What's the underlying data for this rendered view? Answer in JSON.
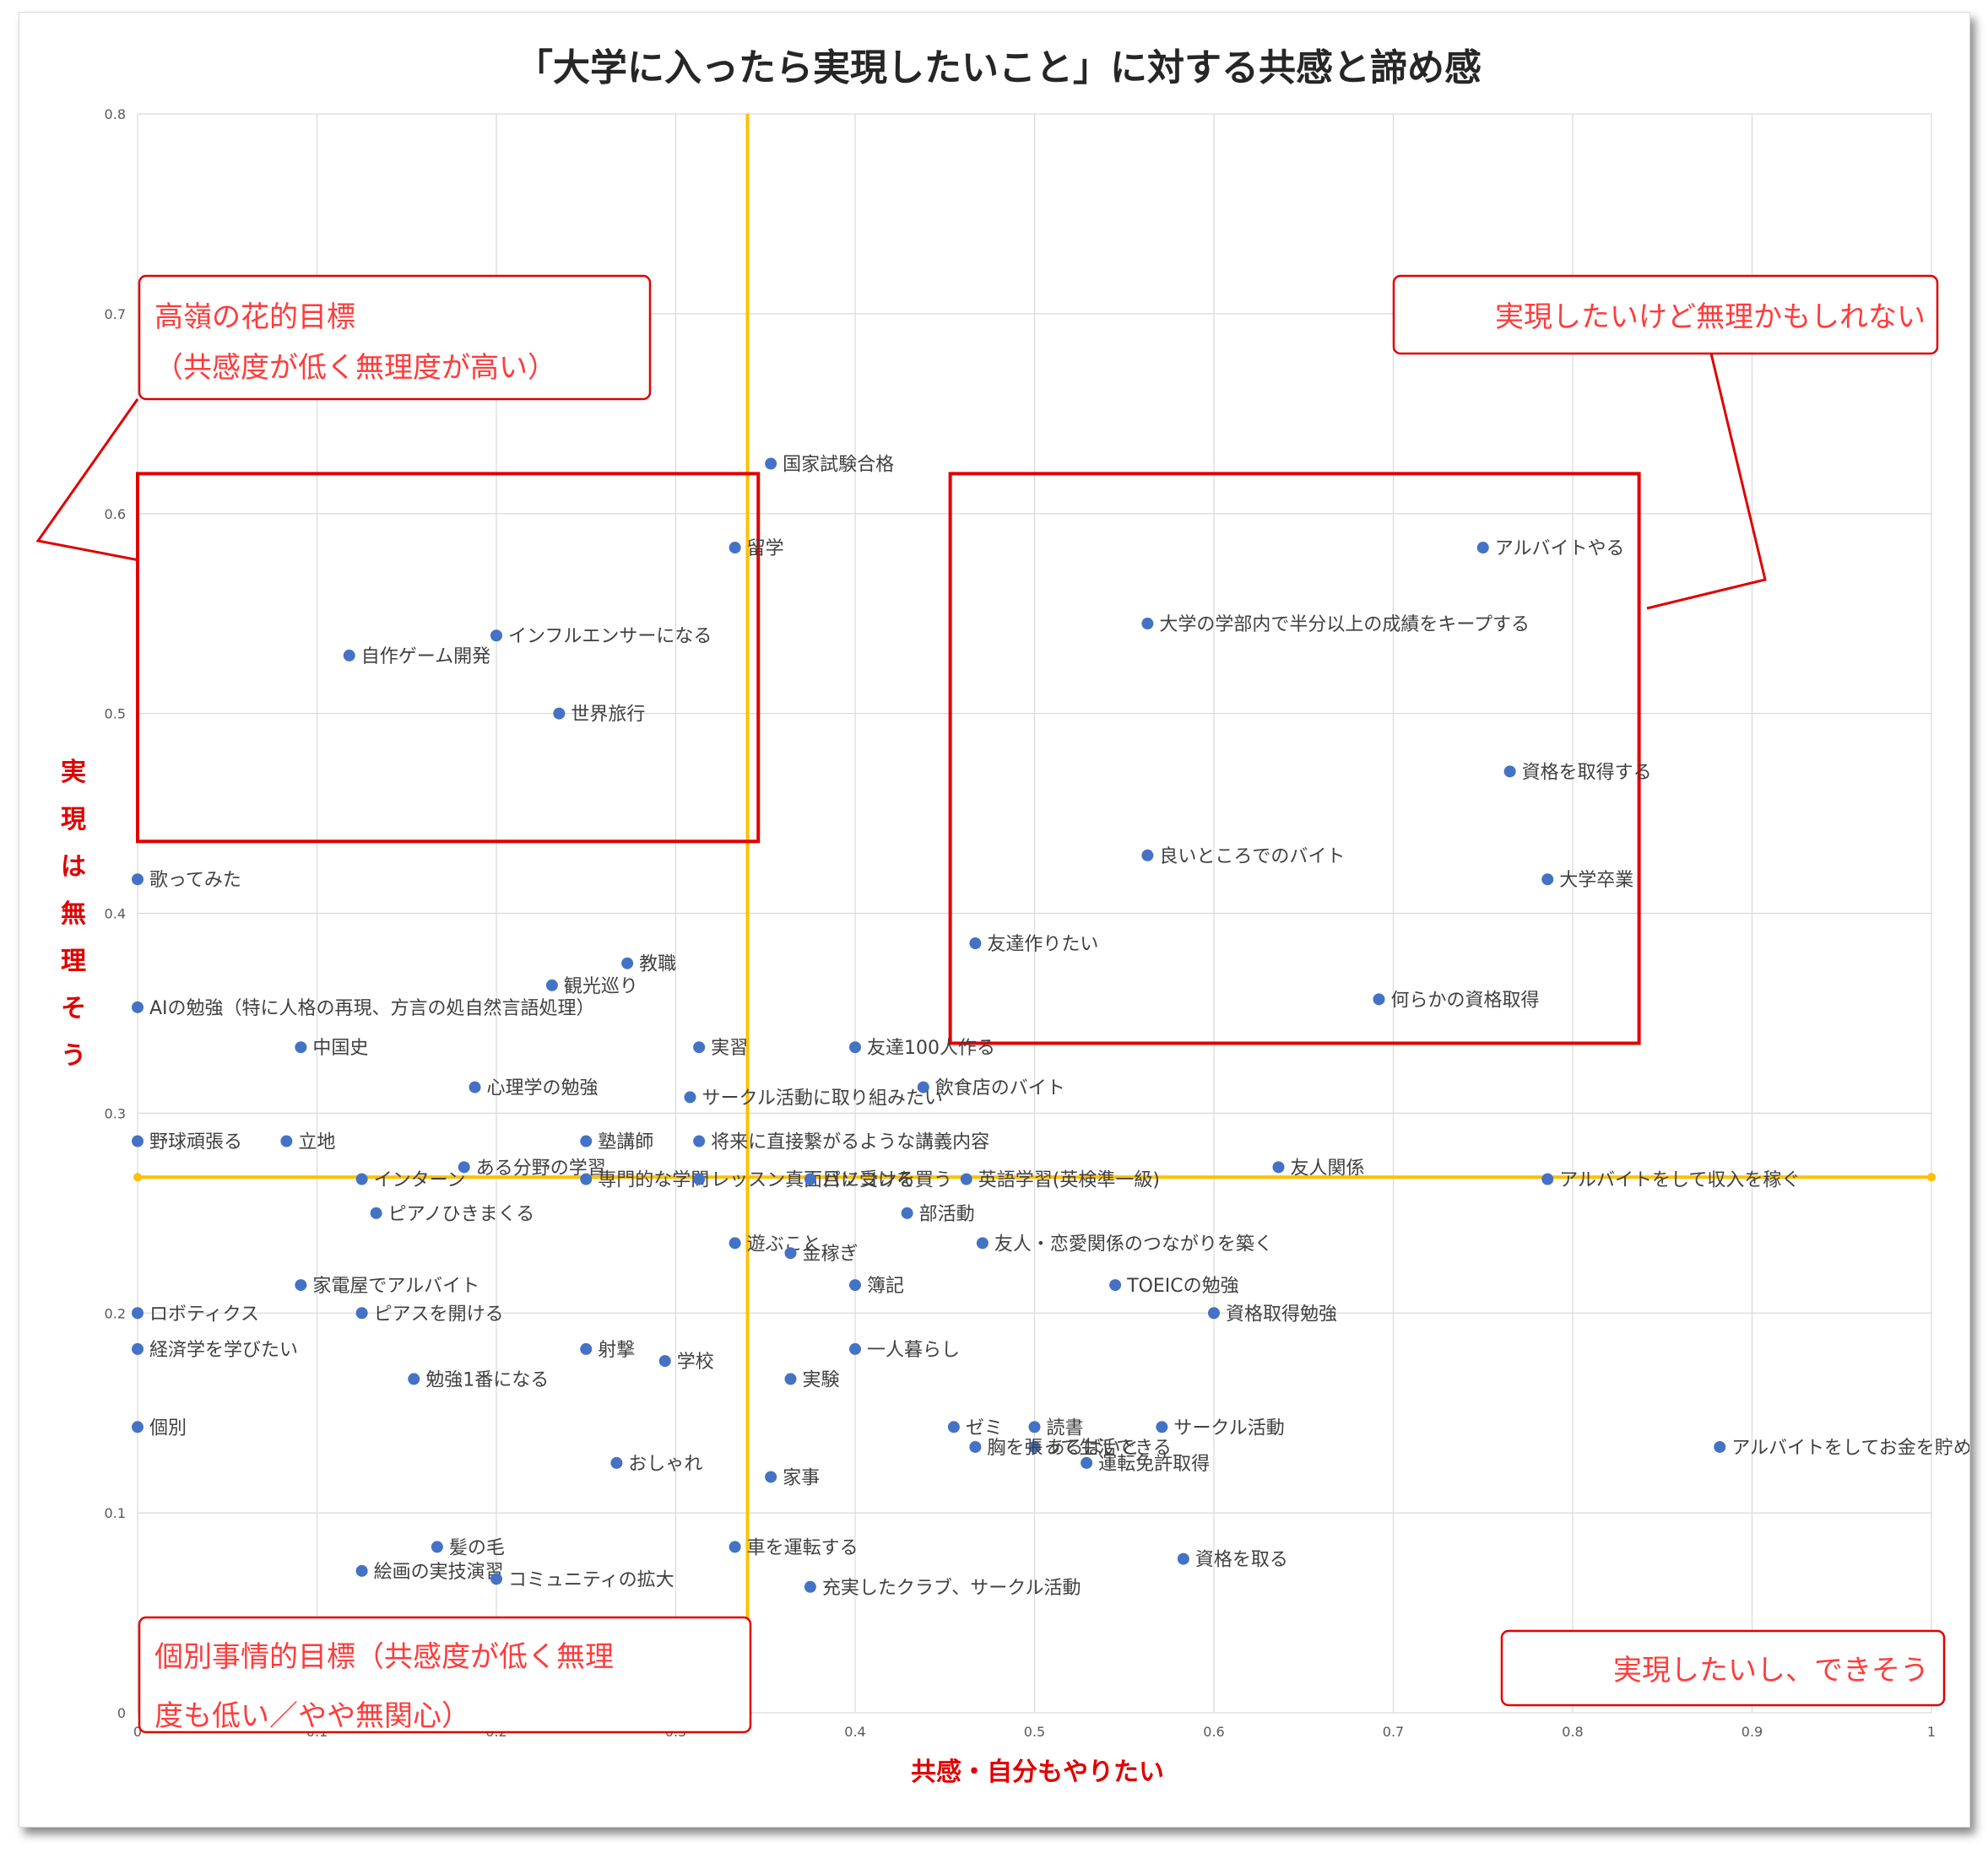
{
  "chart_data": {
    "type": "scatter",
    "title": "「大学に入ったら実現したいこと」に対する共感と諦め感",
    "xlabel": "共感・自分もやりたい",
    "ylabel": "実現は無理そう",
    "xlim": [
      0,
      1
    ],
    "ylim": [
      0,
      0.8
    ],
    "xticks": [
      "0",
      "0.1",
      "0.2",
      "0.3",
      "0.4",
      "0.5",
      "0.6",
      "0.7",
      "0.8",
      "0.9",
      "1"
    ],
    "yticks": [
      "0",
      "0.1",
      "0.2",
      "0.3",
      "0.4",
      "0.5",
      "0.6",
      "0.7",
      "0.8"
    ],
    "grid": true,
    "reference_lines": {
      "x": 0.34,
      "y": 0.268,
      "color": "#ffc000"
    },
    "marker_color": "#4472c4",
    "points": [
      {
        "label": "国家試験合格",
        "x": 0.353,
        "y": 0.625
      },
      {
        "label": "留学",
        "x": 0.333,
        "y": 0.583
      },
      {
        "label": "インフルエンサーになる",
        "x": 0.2,
        "y": 0.539
      },
      {
        "label": "自作ゲーム開発",
        "x": 0.118,
        "y": 0.529
      },
      {
        "label": "世界旅行",
        "x": 0.235,
        "y": 0.5
      },
      {
        "label": "アルバイトやる",
        "x": 0.75,
        "y": 0.583
      },
      {
        "label": "大学の学部内で半分以上の成績をキープする",
        "x": 0.563,
        "y": 0.545
      },
      {
        "label": "資格を取得する",
        "x": 0.765,
        "y": 0.471
      },
      {
        "label": "良いところでのバイト",
        "x": 0.563,
        "y": 0.429
      },
      {
        "label": "大学卒業",
        "x": 0.786,
        "y": 0.417
      },
      {
        "label": "友達作りたい",
        "x": 0.467,
        "y": 0.385
      },
      {
        "label": "何らかの資格取得",
        "x": 0.692,
        "y": 0.357
      },
      {
        "label": "歌ってみた",
        "x": 0.0,
        "y": 0.417
      },
      {
        "label": "教職",
        "x": 0.273,
        "y": 0.375
      },
      {
        "label": "観光巡り",
        "x": 0.231,
        "y": 0.364
      },
      {
        "label": "AIの勉強（特に人格の再現、方言の処自然言語処理）",
        "x": 0.0,
        "y": 0.353
      },
      {
        "label": "中国史",
        "x": 0.091,
        "y": 0.333
      },
      {
        "label": "実習",
        "x": 0.313,
        "y": 0.333
      },
      {
        "label": "友達100人作る",
        "x": 0.4,
        "y": 0.333
      },
      {
        "label": "飲食店のバイト",
        "x": 0.438,
        "y": 0.313
      },
      {
        "label": "心理学の勉強",
        "x": 0.188,
        "y": 0.313
      },
      {
        "label": "サークル活動に取り組みたい",
        "x": 0.308,
        "y": 0.308
      },
      {
        "label": "野球頑張る",
        "x": 0.0,
        "y": 0.286
      },
      {
        "label": "立地",
        "x": 0.083,
        "y": 0.286
      },
      {
        "label": "塾講師",
        "x": 0.25,
        "y": 0.286
      },
      {
        "label": "将来に直接繋がるような講義内容",
        "x": 0.313,
        "y": 0.286
      },
      {
        "label": "友人関係",
        "x": 0.636,
        "y": 0.273
      },
      {
        "label": "ある分野の学習",
        "x": 0.182,
        "y": 0.273
      },
      {
        "label": "インターン",
        "x": 0.125,
        "y": 0.267
      },
      {
        "label": "専門的な学問",
        "x": 0.25,
        "y": 0.267
      },
      {
        "label": "レッスン真面目に受ける",
        "x": 0.313,
        "y": 0.267
      },
      {
        "label": "パソコンを買う",
        "x": 0.375,
        "y": 0.267
      },
      {
        "label": "英語学習(英検準一級)",
        "x": 0.462,
        "y": 0.267
      },
      {
        "label": "アルバイトをして収入を稼ぐ",
        "x": 0.786,
        "y": 0.267
      },
      {
        "label": "ピアノひきまくる",
        "x": 0.133,
        "y": 0.25
      },
      {
        "label": "部活動",
        "x": 0.429,
        "y": 0.25
      },
      {
        "label": "遊ぶこと",
        "x": 0.333,
        "y": 0.235
      },
      {
        "label": "友人・恋愛関係のつながりを築く",
        "x": 0.471,
        "y": 0.235
      },
      {
        "label": "金稼ぎ",
        "x": 0.364,
        "y": 0.23
      },
      {
        "label": "家電屋でアルバイト",
        "x": 0.091,
        "y": 0.214
      },
      {
        "label": "簿記",
        "x": 0.4,
        "y": 0.214
      },
      {
        "label": "TOEICの勉強",
        "x": 0.545,
        "y": 0.214
      },
      {
        "label": "ロボティクス",
        "x": 0.0,
        "y": 0.2
      },
      {
        "label": "ピアスを開ける",
        "x": 0.125,
        "y": 0.2
      },
      {
        "label": "資格取得勉強",
        "x": 0.6,
        "y": 0.2
      },
      {
        "label": "経済学を学びたい",
        "x": 0.0,
        "y": 0.182
      },
      {
        "label": "射撃",
        "x": 0.25,
        "y": 0.182
      },
      {
        "label": "学校",
        "x": 0.294,
        "y": 0.176
      },
      {
        "label": "一人暮らし",
        "x": 0.4,
        "y": 0.182
      },
      {
        "label": "勉強1番になる",
        "x": 0.154,
        "y": 0.167
      },
      {
        "label": "実験",
        "x": 0.364,
        "y": 0.167
      },
      {
        "label": "個別",
        "x": 0.0,
        "y": 0.143
      },
      {
        "label": "ゼミ",
        "x": 0.455,
        "y": 0.143
      },
      {
        "label": "読書",
        "x": 0.5,
        "y": 0.143
      },
      {
        "label": "サークル活動",
        "x": 0.571,
        "y": 0.143
      },
      {
        "label": "あるばいと",
        "x": 0.5,
        "y": 0.133
      },
      {
        "label": "胸を張って生活できる",
        "x": 0.467,
        "y": 0.133
      },
      {
        "label": "アルバイトをしてお金を貯める",
        "x": 0.882,
        "y": 0.133
      },
      {
        "label": "運転免許取得",
        "x": 0.529,
        "y": 0.125
      },
      {
        "label": "おしゃれ",
        "x": 0.267,
        "y": 0.125
      },
      {
        "label": "家事",
        "x": 0.353,
        "y": 0.118
      },
      {
        "label": "髪の毛",
        "x": 0.167,
        "y": 0.083
      },
      {
        "label": "車を運転する",
        "x": 0.333,
        "y": 0.083
      },
      {
        "label": "資格を取る",
        "x": 0.583,
        "y": 0.077
      },
      {
        "label": "絵画の実技演習",
        "x": 0.125,
        "y": 0.071
      },
      {
        "label": "コミュニティの拡大",
        "x": 0.2,
        "y": 0.067
      },
      {
        "label": "充実したクラブ、サークル活動",
        "x": 0.375,
        "y": 0.063
      }
    ]
  },
  "callouts": {
    "top_left_line1": "高嶺の花的目標",
    "top_left_line2": "（共感度が低く無理度が高い）",
    "top_right": "実現したいけど無理かもしれない",
    "bottom_left_line1": "個別事情的目標（共感度が低く無理",
    "bottom_left_line2": "度も低い／やや無関心）",
    "bottom_right": "実現したいし、できそう"
  }
}
